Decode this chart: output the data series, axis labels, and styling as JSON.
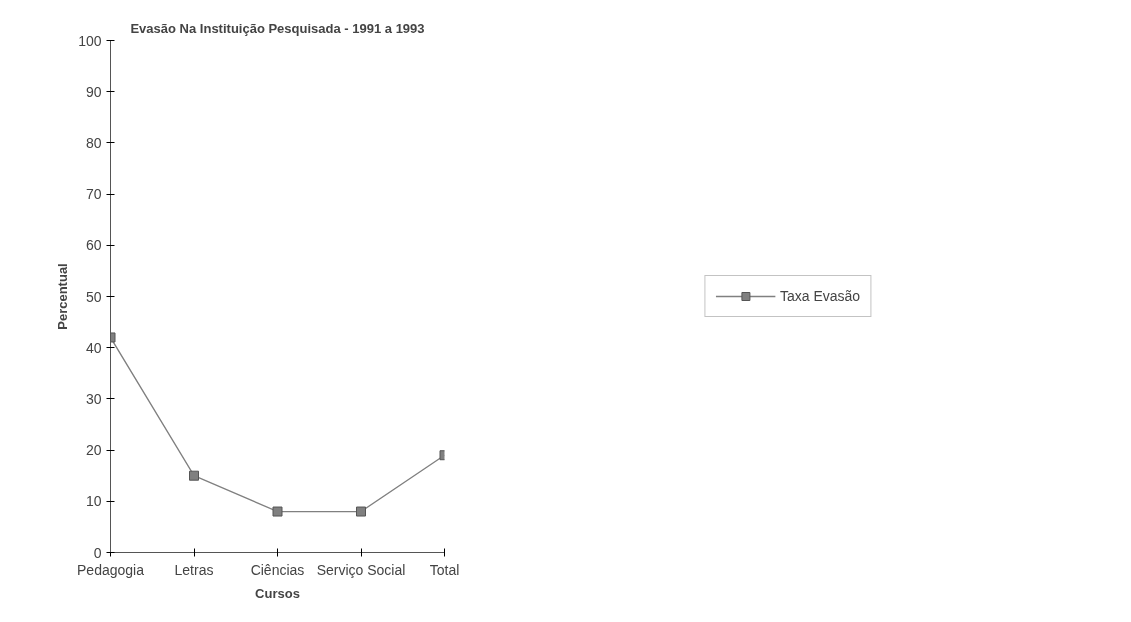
{
  "chart_data": {
    "type": "line",
    "title": "Evasão Na Instituição Pesquisada - 1991 a 1993",
    "xlabel": "Cursos",
    "ylabel": "Percentual",
    "categories": [
      "Pedagogia",
      "Letras",
      "Ciências",
      "Serviço Social",
      "Total"
    ],
    "series": [
      {
        "name": "Taxa Evasão",
        "color": "#808080",
        "values": [
          42,
          15,
          8,
          8,
          19
        ]
      }
    ],
    "ylim": [
      0,
      100
    ],
    "yticks": [
      0,
      10,
      20,
      30,
      40,
      50,
      60,
      70,
      80,
      90,
      100
    ],
    "grid": false,
    "legend": "right",
    "marker": "square",
    "line_style": "solid"
  }
}
